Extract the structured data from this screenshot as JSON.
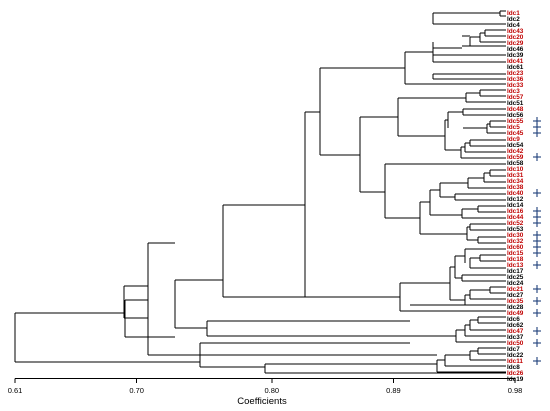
{
  "axis": {
    "label": "Coefficients",
    "ticks": [
      0.61,
      0.7,
      0.8,
      0.89,
      0.98
    ],
    "tick_labels": [
      "0.61",
      "0.70",
      "0.80",
      "0.89",
      "0.98"
    ],
    "range": [
      0.61,
      0.98
    ]
  },
  "colors": {
    "highlight": "#c00000",
    "normal": "#000000",
    "marker": "#1f3f7a"
  },
  "leaves": [
    {
      "label": "Idc1",
      "highlight": true,
      "marker": false
    },
    {
      "label": "Idc2",
      "highlight": false,
      "marker": false
    },
    {
      "label": "Idc4",
      "highlight": false,
      "marker": false
    },
    {
      "label": "Idc43",
      "highlight": true,
      "marker": false
    },
    {
      "label": "Idc20",
      "highlight": true,
      "marker": false
    },
    {
      "label": "Idc29",
      "highlight": true,
      "marker": false
    },
    {
      "label": "Idc46",
      "highlight": false,
      "marker": false
    },
    {
      "label": "Idc39",
      "highlight": false,
      "marker": false
    },
    {
      "label": "Idc41",
      "highlight": true,
      "marker": false
    },
    {
      "label": "Idc61",
      "highlight": false,
      "marker": false
    },
    {
      "label": "Idc23",
      "highlight": true,
      "marker": false
    },
    {
      "label": "Idc36",
      "highlight": true,
      "marker": false
    },
    {
      "label": "Idc33",
      "highlight": true,
      "marker": false
    },
    {
      "label": "Idc3",
      "highlight": true,
      "marker": false
    },
    {
      "label": "Idc57",
      "highlight": true,
      "marker": false
    },
    {
      "label": "Idc51",
      "highlight": false,
      "marker": false
    },
    {
      "label": "Idc48",
      "highlight": true,
      "marker": false
    },
    {
      "label": "Idc56",
      "highlight": false,
      "marker": false
    },
    {
      "label": "Idc55",
      "highlight": true,
      "marker": true
    },
    {
      "label": "Idc5",
      "highlight": true,
      "marker": true
    },
    {
      "label": "Idc45",
      "highlight": true,
      "marker": true
    },
    {
      "label": "Idc9",
      "highlight": true,
      "marker": false
    },
    {
      "label": "Idc54",
      "highlight": false,
      "marker": false
    },
    {
      "label": "Idc42",
      "highlight": true,
      "marker": false
    },
    {
      "label": "Idc59",
      "highlight": true,
      "marker": true
    },
    {
      "label": "Idc58",
      "highlight": false,
      "marker": false
    },
    {
      "label": "Idc10",
      "highlight": true,
      "marker": false
    },
    {
      "label": "Idc31",
      "highlight": true,
      "marker": false
    },
    {
      "label": "Idc34",
      "highlight": true,
      "marker": false
    },
    {
      "label": "Idc38",
      "highlight": true,
      "marker": false
    },
    {
      "label": "Idc40",
      "highlight": true,
      "marker": true
    },
    {
      "label": "Idc12",
      "highlight": false,
      "marker": false
    },
    {
      "label": "Idc14",
      "highlight": false,
      "marker": false
    },
    {
      "label": "Idc16",
      "highlight": true,
      "marker": true
    },
    {
      "label": "Idc44",
      "highlight": true,
      "marker": true
    },
    {
      "label": "Idc52",
      "highlight": true,
      "marker": true
    },
    {
      "label": "Idc53",
      "highlight": false,
      "marker": false
    },
    {
      "label": "Idc30",
      "highlight": true,
      "marker": true
    },
    {
      "label": "Idc32",
      "highlight": true,
      "marker": true
    },
    {
      "label": "Idc60",
      "highlight": true,
      "marker": true
    },
    {
      "label": "Idc15",
      "highlight": true,
      "marker": true
    },
    {
      "label": "Idc18",
      "highlight": true,
      "marker": false
    },
    {
      "label": "Idc13",
      "highlight": true,
      "marker": true
    },
    {
      "label": "Idc17",
      "highlight": false,
      "marker": false
    },
    {
      "label": "Idc25",
      "highlight": false,
      "marker": false
    },
    {
      "label": "Idc24",
      "highlight": false,
      "marker": false
    },
    {
      "label": "Idc21",
      "highlight": true,
      "marker": true
    },
    {
      "label": "Idc27",
      "highlight": false,
      "marker": false
    },
    {
      "label": "Idc35",
      "highlight": true,
      "marker": true
    },
    {
      "label": "Idc28",
      "highlight": false,
      "marker": false
    },
    {
      "label": "Idc49",
      "highlight": true,
      "marker": true
    },
    {
      "label": "Idc6",
      "highlight": false,
      "marker": false
    },
    {
      "label": "Idc62",
      "highlight": false,
      "marker": false
    },
    {
      "label": "Idc47",
      "highlight": true,
      "marker": true
    },
    {
      "label": "Idc37",
      "highlight": false,
      "marker": false
    },
    {
      "label": "Idc50",
      "highlight": true,
      "marker": true
    },
    {
      "label": "Idc7",
      "highlight": false,
      "marker": false
    },
    {
      "label": "Idc22",
      "highlight": false,
      "marker": false
    },
    {
      "label": "Idc11",
      "highlight": true,
      "marker": true
    },
    {
      "label": "Idc8",
      "highlight": false,
      "marker": false
    },
    {
      "label": "Idc26",
      "highlight": true,
      "marker": false
    },
    {
      "label": "Idc19",
      "highlight": false,
      "marker": false
    }
  ]
}
